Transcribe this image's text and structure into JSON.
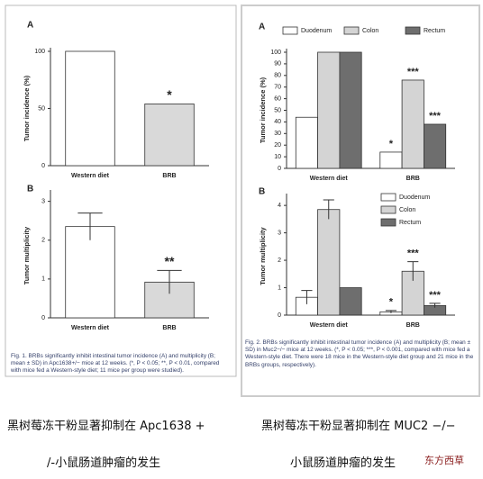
{
  "chart_data": [
    {
      "type": "bar",
      "panel": "A",
      "y_label": "Tumor incidence (%)",
      "categories": [
        "Western diet",
        "BRB"
      ],
      "values": [
        100,
        54
      ],
      "stars": [
        null,
        "*"
      ],
      "colors": [
        "#ffffff",
        "#d9d9d9"
      ],
      "ylim": [
        0,
        100
      ],
      "yticks": [
        0,
        50,
        100
      ]
    },
    {
      "type": "bar",
      "panel": "B",
      "y_label": "Tumor multiplicity",
      "categories": [
        "Western diet",
        "BRB"
      ],
      "values": [
        2.35,
        0.92
      ],
      "errors": [
        0.35,
        0.3
      ],
      "stars": [
        null,
        "**"
      ],
      "colors": [
        "#ffffff",
        "#d9d9d9"
      ],
      "ylim": [
        0,
        3.2
      ],
      "yticks": [
        0,
        1,
        2,
        3
      ]
    },
    {
      "type": "bar",
      "panel": "A",
      "y_label": "Tumor incidence (%)",
      "categories": [
        "Western diet",
        "BRB"
      ],
      "legend": "top",
      "series": [
        {
          "name": "Duodenum",
          "color": "#ffffff",
          "values": [
            44,
            14
          ],
          "stars": [
            null,
            "*"
          ]
        },
        {
          "name": "Colon",
          "color": "#d4d4d4",
          "values": [
            100,
            76
          ],
          "stars": [
            null,
            "***"
          ]
        },
        {
          "name": "Rectum",
          "color": "#6e6e6e",
          "values": [
            100,
            38
          ],
          "stars": [
            null,
            "***"
          ]
        }
      ],
      "ylim": [
        0,
        100
      ],
      "yticks": [
        0,
        10,
        20,
        30,
        40,
        50,
        60,
        70,
        80,
        90,
        100
      ]
    },
    {
      "type": "bar",
      "panel": "B",
      "y_label": "Tumor multiplicity",
      "categories": [
        "Western diet",
        "BRB"
      ],
      "legend": "upper right",
      "series": [
        {
          "name": "Duodenum",
          "color": "#ffffff",
          "values": [
            0.65,
            0.12
          ],
          "errors": [
            0.25,
            0.05
          ],
          "stars": [
            null,
            "*"
          ]
        },
        {
          "name": "Colon",
          "color": "#d4d4d4",
          "values": [
            3.85,
            1.6
          ],
          "errors": [
            0.35,
            0.35
          ],
          "stars": [
            null,
            "***"
          ]
        },
        {
          "name": "Rectum",
          "color": "#6e6e6e",
          "values": [
            1.0,
            0.35
          ],
          "errors": [
            0,
            0.08
          ],
          "stars": [
            null,
            "***"
          ]
        }
      ],
      "ylim": [
        0,
        4.3
      ],
      "yticks": [
        0,
        1,
        2,
        3,
        4
      ]
    }
  ],
  "figures": [
    {
      "caption": "Fig. 1. BRBs significantly inhibit intestinal tumor incidence (A) and multiplicity (B; mean ± SD) in Apc1638+/− mice at 12 weeks. (*, P < 0.05; **, P < 0.01, compared with mice fed a Western-style diet; 11 mice per group were studied)."
    },
    {
      "caption": "Fig. 2. BRBs significantly inhibit intestinal tumor incidence (A) and multiplicity (B; mean ± SD) in Muc2−/− mice at 12 weeks. (*, P < 0.05; ***, P < 0.001, compared with mice fed a Western-style diet. There were 18 mice in the Western-style diet group and 21 mice in the BRBs groups, respectively)."
    }
  ],
  "notes": [
    {
      "lines": [
        "黑树莓冻干粉显著抑制在 Apc1638 +",
        "/-小鼠肠道肿瘤的发生"
      ]
    },
    {
      "lines": [
        "黑树莓冻干粉显著抑制在 MUC2 −/−",
        "小鼠肠道肿瘤的发生"
      ]
    }
  ],
  "watermark": "东方西草"
}
